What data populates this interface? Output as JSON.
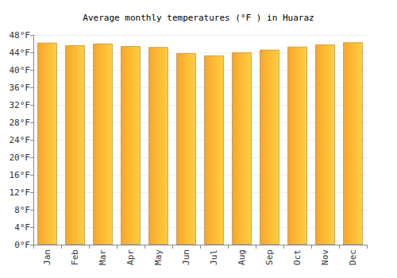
{
  "chart_data": {
    "type": "bar",
    "title": "Average monthly temperatures (°F ) in Huaraz",
    "categories": [
      "Jan",
      "Feb",
      "Mar",
      "Apr",
      "May",
      "Jun",
      "Jul",
      "Aug",
      "Sep",
      "Oct",
      "Nov",
      "Dec"
    ],
    "values": [
      46.2,
      45.6,
      46.0,
      45.4,
      45.2,
      43.8,
      43.3,
      44.0,
      44.6,
      45.3,
      45.8,
      46.3
    ],
    "color": "#f9a52a",
    "ylim": [
      0,
      48
    ],
    "yticks": [
      {
        "value": 0,
        "label": "0°F"
      },
      {
        "value": 4,
        "label": "4°F"
      },
      {
        "value": 8,
        "label": "8°F"
      },
      {
        "value": 12,
        "label": "12°F"
      },
      {
        "value": 16,
        "label": "16°F"
      },
      {
        "value": 20,
        "label": "20°F"
      },
      {
        "value": 24,
        "label": "24°F"
      },
      {
        "value": 28,
        "label": "28°F"
      },
      {
        "value": 32,
        "label": "32°F"
      },
      {
        "value": 36,
        "label": "36°F"
      },
      {
        "value": 40,
        "label": "40°F"
      },
      {
        "value": 44,
        "label": "44°F"
      },
      {
        "value": 48,
        "label": "48°F"
      }
    ],
    "grid": true
  }
}
